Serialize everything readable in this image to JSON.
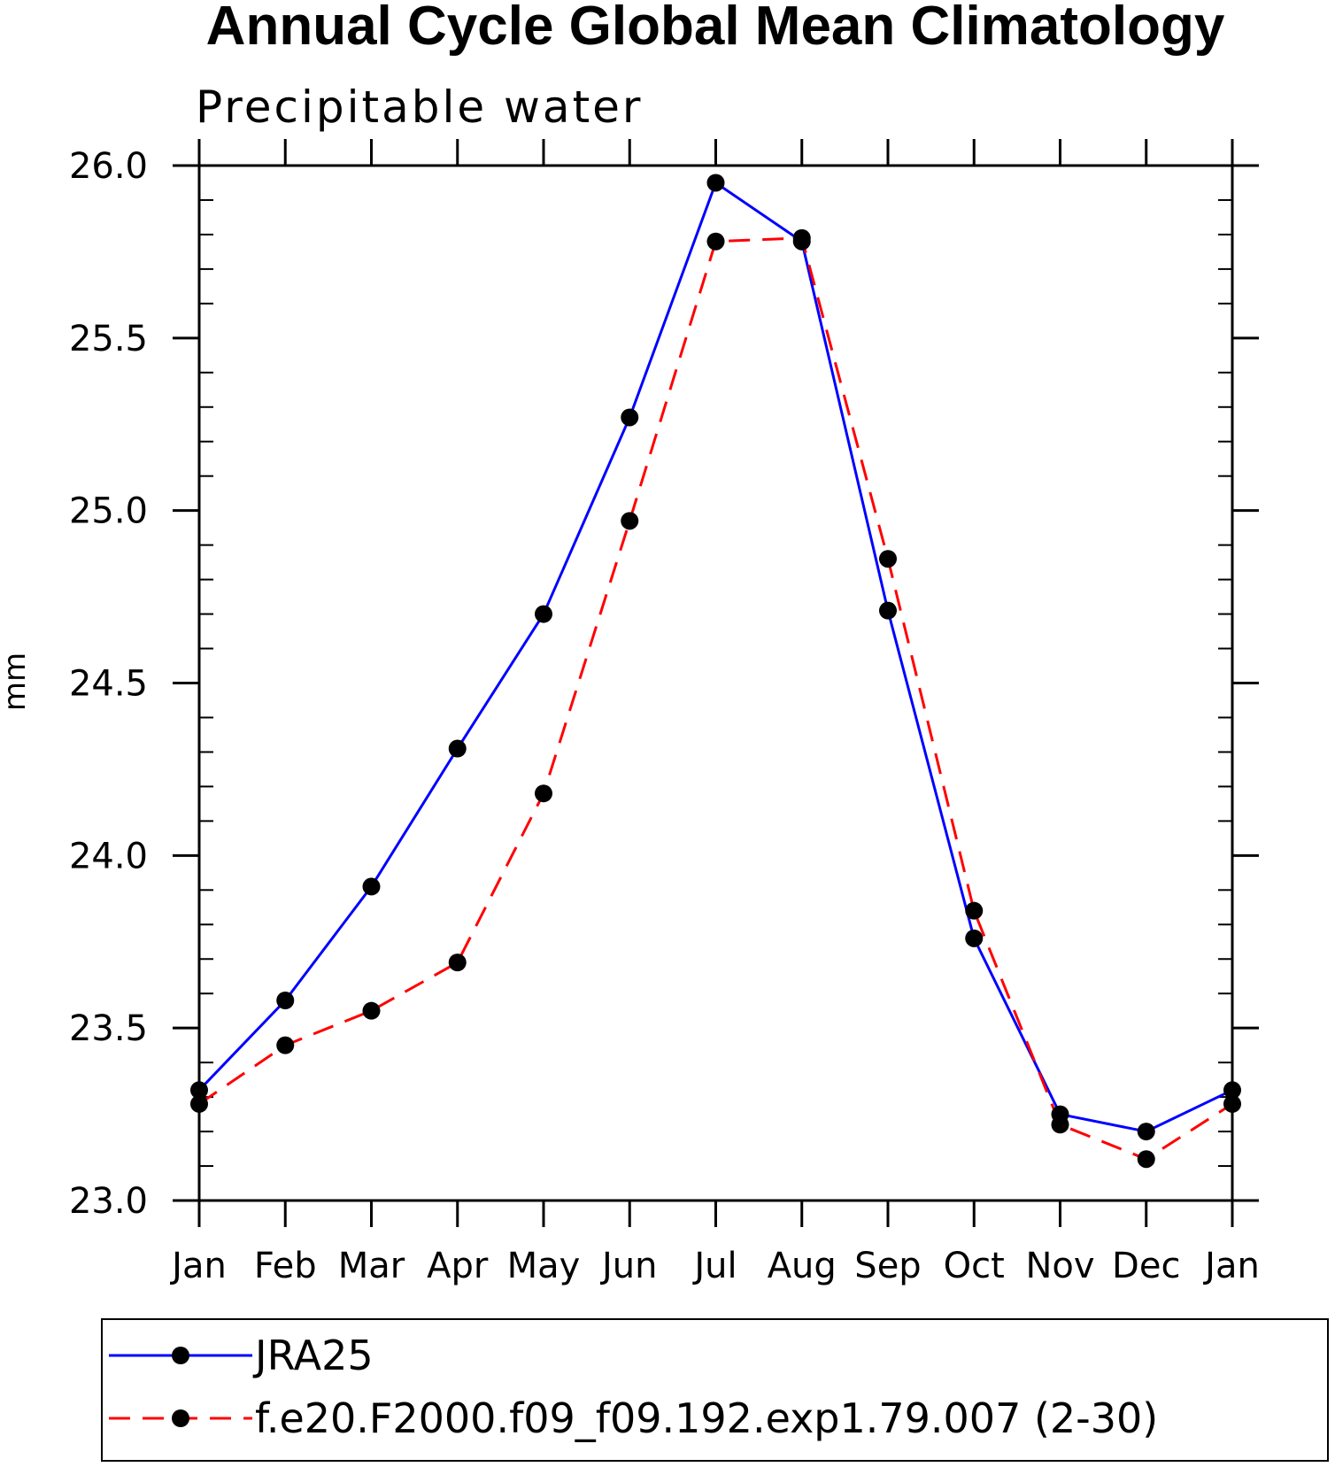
{
  "chart_data": {
    "type": "line",
    "title": "Annual Cycle Global Mean Climatology",
    "subtitle": "Precipitable water",
    "xlabel": "",
    "ylabel": "mm",
    "categories": [
      "Jan",
      "Feb",
      "Mar",
      "Apr",
      "May",
      "Jun",
      "Jul",
      "Aug",
      "Sep",
      "Oct",
      "Nov",
      "Dec",
      "Jan"
    ],
    "ylim": [
      23.0,
      26.0
    ],
    "yticks": [
      "23.0",
      "23.5",
      "24.0",
      "24.5",
      "25.0",
      "25.5",
      "26.0"
    ],
    "grid": false,
    "legend_position": "bottom",
    "series": [
      {
        "name": "JRA25",
        "color": "#0000ff",
        "line_style": "solid",
        "marker": "filled-circle",
        "values": [
          23.32,
          23.58,
          23.91,
          24.31,
          24.7,
          25.27,
          25.95,
          25.78,
          24.71,
          23.76,
          23.25,
          23.2,
          23.32
        ]
      },
      {
        "name": "f.e20.F2000.f09_f09.192.exp1.79.007 (2-30)",
        "color": "#ff0000",
        "line_style": "dashed",
        "marker": "filled-circle",
        "values": [
          23.28,
          23.45,
          23.55,
          23.69,
          24.18,
          24.97,
          25.78,
          25.79,
          24.86,
          23.84,
          23.22,
          23.12,
          23.28
        ]
      }
    ]
  }
}
